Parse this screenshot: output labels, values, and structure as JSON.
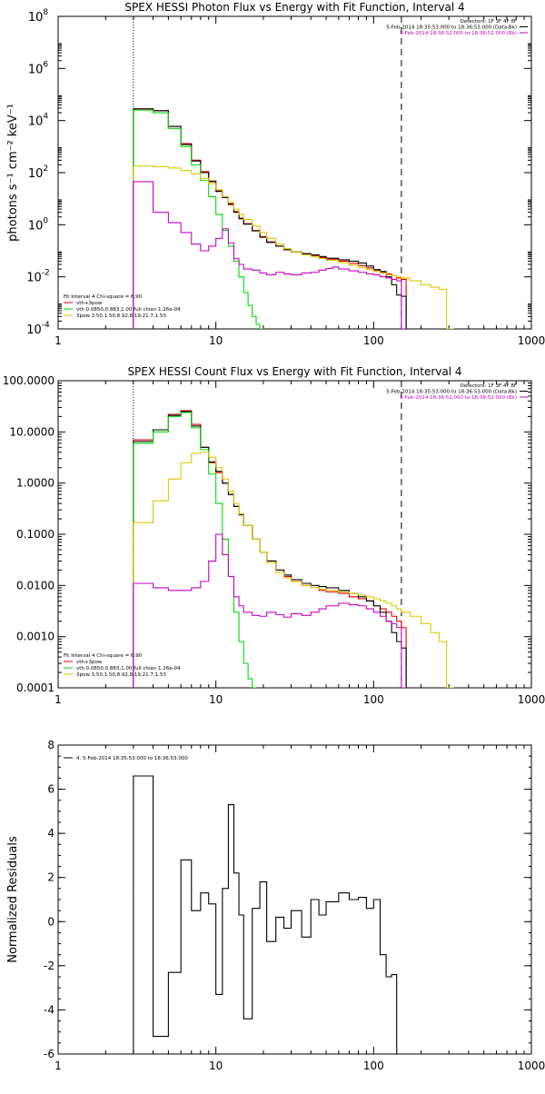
{
  "chart_data": [
    {
      "type": "line",
      "title": "SPEX HESSI Photon Flux vs Energy with Fit Function, Interval 4",
      "ylabel": "photons s⁻¹ cm⁻² keV⁻¹",
      "xlabel": "",
      "x_scale": "log",
      "y_scale": "log",
      "xlim": [
        1,
        1000
      ],
      "ylim": [
        0.0001,
        100000000
      ],
      "x_ticks": [
        "1",
        "10",
        "100",
        "1000"
      ],
      "y_ticks": [
        {
          "base": "10",
          "exp": "-4",
          "value": 0.0001
        },
        {
          "base": "10",
          "exp": "-2",
          "value": 0.01
        },
        {
          "base": "10",
          "exp": "0",
          "value": 1
        },
        {
          "base": "10",
          "exp": "2",
          "value": 100
        },
        {
          "base": "10",
          "exp": "4",
          "value": 10000
        },
        {
          "base": "10",
          "exp": "6",
          "value": 1000000
        },
        {
          "base": "10",
          "exp": "8",
          "value": 100000000
        }
      ],
      "vlines": [
        {
          "x": 3,
          "style": "dotted"
        },
        {
          "x": 150,
          "style": "dashed"
        }
      ],
      "header_lines": [
        "Detectors: 1F 3F 4F 8F",
        "5-Feb-2014 18:35:53.000 to 18:36:53.000 (Data-Bk)",
        "5-Feb-2014 18:36:52.000 to 18:38:52.000 (Bk)"
      ],
      "header_colors": [
        "#000000",
        "#000000",
        "#c800c8"
      ],
      "legend_lines": [
        "Fit Interval 4   Chi-square = 6.90",
        "vth+3pow",
        "vth 0.0850,0.883,1.00  full chian 1.26e-04",
        "3pow 3.50,1.50,8.92,8.19,21.7,1.53"
      ],
      "legend_colors": [
        "#000000",
        "#e00000",
        "#00dc00",
        "#dcc800"
      ],
      "series": [
        {
          "color": "#e00000",
          "x": [
            3,
            4,
            5,
            6,
            7,
            8,
            9,
            10,
            11,
            12,
            13,
            14,
            15,
            17,
            19,
            21,
            24,
            27,
            30,
            35,
            40,
            45,
            50,
            60,
            70,
            80,
            90,
            100,
            110,
            120,
            130,
            140,
            150
          ],
          "y": [
            28000,
            24000,
            6000,
            1300,
            300,
            110,
            48,
            20,
            12,
            6.5,
            3.2,
            1.8,
            1.1,
            0.6,
            0.35,
            0.22,
            0.15,
            0.11,
            0.09,
            0.075,
            0.065,
            0.055,
            0.048,
            0.04,
            0.033,
            0.027,
            0.022,
            0.018,
            0.015,
            0.013,
            0.011,
            0.009,
            0.008
          ]
        },
        {
          "color": "#000000",
          "x": [
            3,
            4,
            5,
            6,
            7,
            8,
            9,
            10,
            11,
            12,
            13,
            14,
            15,
            17,
            19,
            21,
            24,
            27,
            30,
            35,
            40,
            45,
            50,
            60,
            70,
            80,
            90,
            100,
            110,
            120,
            130,
            140,
            150
          ],
          "y": [
            28000,
            24000,
            6000,
            1200,
            280,
            100,
            45,
            19,
            11,
            6,
            3.0,
            1.7,
            1.05,
            0.58,
            0.33,
            0.21,
            0.15,
            0.11,
            0.09,
            0.078,
            0.07,
            0.06,
            0.052,
            0.045,
            0.04,
            0.034,
            0.026,
            0.019,
            0.016,
            0.01,
            0.005,
            0.002,
            0.0018
          ]
        },
        {
          "color": "#00dc00",
          "x": [
            3,
            4,
            5,
            6,
            7,
            8,
            9,
            10,
            11,
            12,
            13,
            14,
            15,
            16,
            17,
            18,
            19
          ],
          "y": [
            25000,
            20000,
            5000,
            1000,
            200,
            50,
            12,
            2.5,
            0.6,
            0.15,
            0.04,
            0.01,
            0.0025,
            0.0008,
            0.0003,
            0.00015,
            0.0001
          ]
        },
        {
          "color": "#dcc800",
          "x": [
            3,
            4,
            5,
            6,
            7,
            8,
            9,
            10,
            11,
            12,
            13,
            14,
            15,
            17,
            19,
            21,
            24,
            27,
            30,
            35,
            40,
            45,
            50,
            60,
            70,
            80,
            90,
            100,
            110,
            120,
            130,
            140,
            150,
            170,
            200,
            230,
            260,
            290
          ],
          "y": [
            180,
            170,
            150,
            120,
            90,
            60,
            38,
            22,
            12,
            7,
            4,
            2.5,
            1.6,
            0.9,
            0.5,
            0.3,
            0.18,
            0.12,
            0.09,
            0.07,
            0.06,
            0.05,
            0.043,
            0.035,
            0.028,
            0.023,
            0.019,
            0.016,
            0.014,
            0.012,
            0.011,
            0.01,
            0.009,
            0.007,
            0.005,
            0.004,
            0.0033,
            0.0001
          ]
        },
        {
          "color": "#c800c8",
          "x": [
            3,
            4,
            5,
            6,
            7,
            8,
            9,
            10,
            11,
            12,
            13,
            14,
            15,
            17,
            19,
            21,
            24,
            27,
            30,
            35,
            40,
            45,
            50,
            55,
            60,
            70,
            80,
            90,
            100,
            110,
            120,
            130,
            140,
            150
          ],
          "y": [
            45,
            3,
            1.2,
            0.5,
            0.18,
            0.1,
            0.15,
            0.3,
            0.7,
            0.2,
            0.05,
            0.03,
            0.02,
            0.018,
            0.014,
            0.012,
            0.015,
            0.013,
            0.012,
            0.014,
            0.015,
            0.018,
            0.021,
            0.024,
            0.02,
            0.017,
            0.015,
            0.013,
            0.012,
            0.01,
            0.009,
            0.008,
            0.007,
            0.0001
          ]
        }
      ]
    },
    {
      "type": "line",
      "title": "SPEX HESSI Count Flux vs Energy with Fit Function, Interval 4",
      "ylabel": "",
      "xlabel": "",
      "x_scale": "log",
      "y_scale": "log",
      "xlim": [
        1,
        1000
      ],
      "ylim": [
        0.0001,
        100
      ],
      "x_ticks": [
        "1",
        "10",
        "100",
        "1000"
      ],
      "y_ticks": [
        {
          "label": "0.0001",
          "value": 0.0001
        },
        {
          "label": "0.0010",
          "value": 0.001
        },
        {
          "label": "0.0100",
          "value": 0.01
        },
        {
          "label": "0.1000",
          "value": 0.1
        },
        {
          "label": "1.0000",
          "value": 1
        },
        {
          "label": "10.0000",
          "value": 10
        },
        {
          "label": "100.0000",
          "value": 100
        }
      ],
      "vlines": [
        {
          "x": 3,
          "style": "dotted"
        },
        {
          "x": 150,
          "style": "dashed"
        }
      ],
      "header_lines": [
        "Detectors: 1F 3F 4F 8F",
        "5-Feb-2014 18:35:53.000 to 18:36:53.000 (Data-Bk)",
        "5-Feb-2014 18:36:52.000 to 18:38:52.000 (Bk)"
      ],
      "header_colors": [
        "#000000",
        "#000000",
        "#c800c8"
      ],
      "legend_lines": [
        "Fit Interval 4   Chi-square = 6.90",
        "vth+3pow",
        "vth 0.0850,0.883,1.00  full chian 1.26e-04",
        "3pow 3.50,1.50,8.92,8.19,21.7,1.53"
      ],
      "legend_colors": [
        "#000000",
        "#e00000",
        "#00dc00",
        "#dcc800"
      ],
      "series": [
        {
          "color": "#e00000",
          "x": [
            3,
            4,
            5,
            6,
            7,
            8,
            9,
            10,
            11,
            12,
            13,
            14,
            15,
            17,
            19,
            21,
            24,
            27,
            30,
            35,
            40,
            45,
            50,
            60,
            70,
            80,
            90,
            100,
            110,
            120,
            130,
            140,
            150
          ],
          "y": [
            7,
            11,
            22,
            26,
            14,
            5,
            2.5,
            1.6,
            1.0,
            0.6,
            0.35,
            0.25,
            0.15,
            0.08,
            0.045,
            0.03,
            0.02,
            0.015,
            0.012,
            0.01,
            0.009,
            0.008,
            0.0075,
            0.007,
            0.006,
            0.0055,
            0.005,
            0.004,
            0.0035,
            0.003,
            0.0025,
            0.002,
            0.0015
          ]
        },
        {
          "color": "#000000",
          "x": [
            3,
            4,
            5,
            6,
            7,
            8,
            9,
            10,
            11,
            12,
            13,
            14,
            15,
            17,
            19,
            21,
            24,
            27,
            30,
            35,
            40,
            45,
            50,
            60,
            70,
            80,
            90,
            100,
            110,
            120,
            130,
            140,
            150
          ],
          "y": [
            6.5,
            11,
            21,
            25,
            13,
            5,
            2.6,
            1.7,
            1.0,
            0.6,
            0.35,
            0.24,
            0.15,
            0.08,
            0.045,
            0.03,
            0.02,
            0.016,
            0.013,
            0.011,
            0.01,
            0.0095,
            0.009,
            0.008,
            0.007,
            0.006,
            0.005,
            0.004,
            0.003,
            0.002,
            0.0012,
            0.0008,
            0.0006
          ]
        },
        {
          "color": "#00dc00",
          "x": [
            3,
            4,
            5,
            6,
            7,
            8,
            9,
            10,
            11,
            12,
            13,
            14,
            15,
            16,
            17
          ],
          "y": [
            6,
            10,
            20,
            24,
            12,
            4.5,
            1.5,
            0.4,
            0.08,
            0.015,
            0.003,
            0.0008,
            0.0003,
            0.00015,
            0.0001
          ]
        },
        {
          "color": "#dcc800",
          "x": [
            3,
            4,
            5,
            6,
            7,
            8,
            9,
            10,
            11,
            12,
            13,
            14,
            15,
            17,
            19,
            21,
            24,
            27,
            30,
            35,
            40,
            45,
            50,
            60,
            70,
            80,
            90,
            100,
            110,
            120,
            130,
            140,
            150,
            170,
            200,
            230,
            260,
            290
          ],
          "y": [
            0.17,
            0.45,
            1.2,
            2.5,
            3.8,
            4.0,
            3.2,
            2.0,
            1.2,
            0.7,
            0.4,
            0.25,
            0.15,
            0.08,
            0.045,
            0.028,
            0.018,
            0.014,
            0.012,
            0.01,
            0.009,
            0.0085,
            0.008,
            0.0075,
            0.007,
            0.0065,
            0.006,
            0.0055,
            0.005,
            0.0045,
            0.004,
            0.0035,
            0.003,
            0.0025,
            0.0018,
            0.0012,
            0.0008,
            0.0001
          ]
        },
        {
          "color": "#c800c8",
          "x": [
            3,
            4,
            5,
            6,
            7,
            8,
            9,
            10,
            11,
            12,
            13,
            14,
            15,
            17,
            19,
            21,
            24,
            27,
            30,
            35,
            40,
            45,
            50,
            60,
            70,
            80,
            90,
            100,
            110,
            120,
            130,
            140,
            150
          ],
          "y": [
            0.011,
            0.009,
            0.008,
            0.008,
            0.009,
            0.012,
            0.03,
            0.1,
            0.04,
            0.015,
            0.006,
            0.004,
            0.003,
            0.0026,
            0.0025,
            0.003,
            0.0027,
            0.0024,
            0.0028,
            0.0026,
            0.003,
            0.0035,
            0.004,
            0.0045,
            0.0042,
            0.004,
            0.0035,
            0.003,
            0.0025,
            0.002,
            0.0018,
            0.0015,
            0.0001
          ]
        }
      ]
    },
    {
      "type": "line",
      "title": "",
      "ylabel": "Normalized Residuals",
      "xlabel": "",
      "x_scale": "log",
      "y_scale": "linear",
      "xlim": [
        1,
        1000
      ],
      "ylim": [
        -6,
        8
      ],
      "x_ticks": [
        "1",
        "10",
        "100",
        "1000"
      ],
      "y_ticks": [
        {
          "label": "8",
          "value": 8
        },
        {
          "label": "6",
          "value": 6
        },
        {
          "label": "4",
          "value": 4
        },
        {
          "label": "2",
          "value": 2
        },
        {
          "label": "0",
          "value": 0
        },
        {
          "label": "-2",
          "value": -2
        },
        {
          "label": "-4",
          "value": -4
        },
        {
          "label": "-6",
          "value": -6
        }
      ],
      "legend_lines": [
        "4. 5-Feb-2014 18:35:53.000 to 18:36:53.000"
      ],
      "legend_colors": [
        "#000000"
      ],
      "series": [
        {
          "color": "#000000",
          "x": [
            3,
            4,
            5,
            6,
            7,
            8,
            9,
            10,
            11,
            12,
            13,
            14,
            15,
            17,
            19,
            21,
            24,
            27,
            30,
            35,
            40,
            45,
            50,
            60,
            70,
            80,
            90,
            100,
            110,
            120,
            130,
            140,
            150
          ],
          "y": [
            6.6,
            -5.2,
            -2.3,
            2.8,
            0.5,
            1.3,
            0.8,
            -3.3,
            1.5,
            5.3,
            2.2,
            0.3,
            -4.4,
            0.6,
            1.8,
            -0.9,
            0.2,
            -0.3,
            0.5,
            -0.7,
            1.0,
            0.3,
            0.9,
            1.3,
            1.0,
            1.1,
            0.6,
            1.0,
            -1.5,
            -2.5,
            -2.4,
            -6,
            -6
          ]
        }
      ]
    }
  ]
}
